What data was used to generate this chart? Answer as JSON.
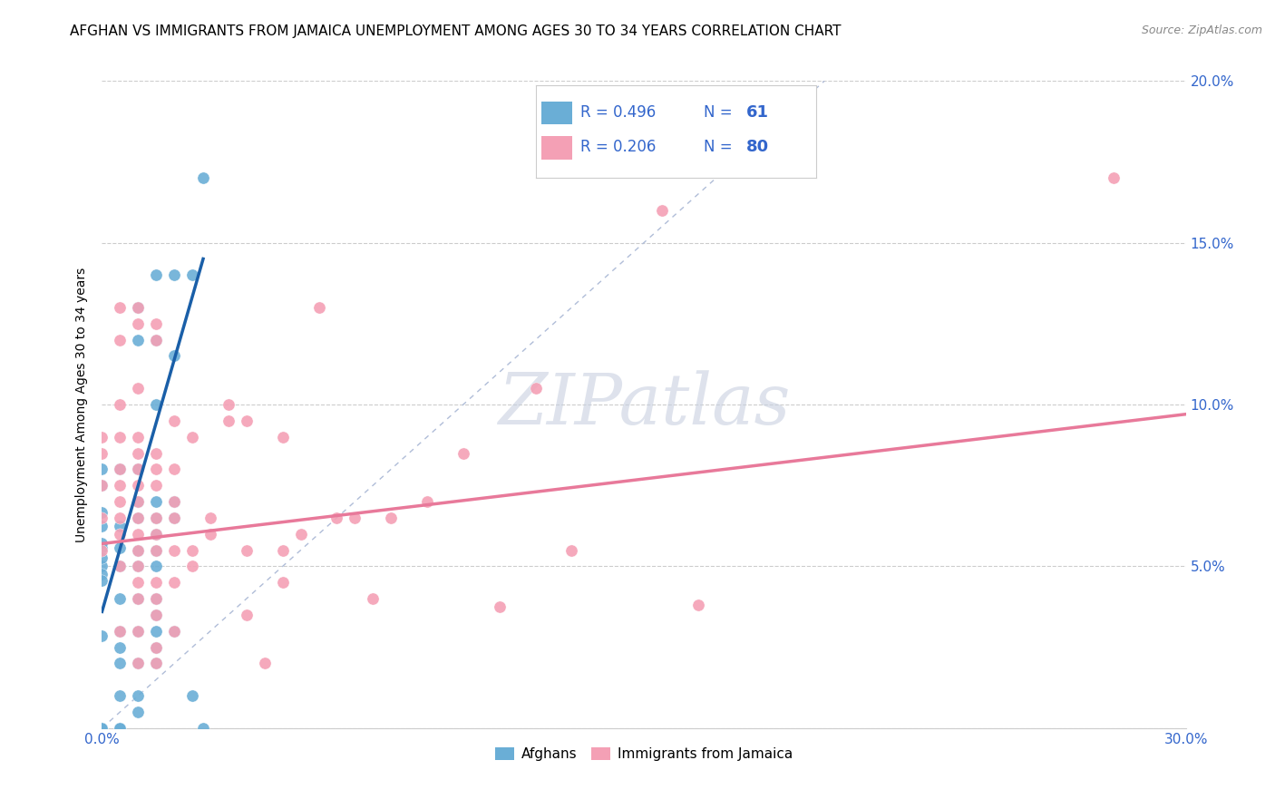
{
  "title": "AFGHAN VS IMMIGRANTS FROM JAMAICA UNEMPLOYMENT AMONG AGES 30 TO 34 YEARS CORRELATION CHART",
  "source": "Source: ZipAtlas.com",
  "ylabel": "Unemployment Among Ages 30 to 34 years",
  "xlim": [
    0.0,
    0.3
  ],
  "ylim": [
    0.0,
    0.2
  ],
  "xticks": [
    0.0,
    0.05,
    0.1,
    0.15,
    0.2,
    0.25,
    0.3
  ],
  "xtick_labels": [
    "0.0%",
    "",
    "",
    "",
    "",
    "",
    "30.0%"
  ],
  "yticks": [
    0.0,
    0.05,
    0.1,
    0.15,
    0.2
  ],
  "ytick_labels_right": [
    "",
    "5.0%",
    "10.0%",
    "15.0%",
    "20.0%"
  ],
  "legend_labels": [
    "Afghans",
    "Immigrants from Jamaica"
  ],
  "afghan_color": "#6aaed6",
  "jamaica_color": "#f4a0b5",
  "afghan_line_color": "#1a5fa8",
  "jamaica_line_color": "#e8799a",
  "diagonal_line_color": "#b0bdd8",
  "watermark_color": "#c8d0e0",
  "tick_color": "#3366cc",
  "title_fontsize": 11,
  "axis_label_fontsize": 10,
  "tick_fontsize": 11,
  "legend_fontsize": 12,
  "source_fontsize": 9,
  "afghan_points": [
    [
      0.0,
      0.0667
    ],
    [
      0.0,
      0.0556
    ],
    [
      0.0,
      0.0
    ],
    [
      0.0,
      0.0286
    ],
    [
      0.0,
      0.05
    ],
    [
      0.0,
      0.075
    ],
    [
      0.0,
      0.0
    ],
    [
      0.0,
      0.08
    ],
    [
      0.0,
      0.0571
    ],
    [
      0.0,
      0.0476
    ],
    [
      0.0,
      0.0625
    ],
    [
      0.0,
      0.0526
    ],
    [
      0.0,
      0.0455
    ],
    [
      0.0,
      0.0
    ],
    [
      0.0,
      0.0
    ],
    [
      0.005,
      0.08
    ],
    [
      0.005,
      0.0625
    ],
    [
      0.005,
      0.0556
    ],
    [
      0.005,
      0.05
    ],
    [
      0.005,
      0.04
    ],
    [
      0.005,
      0.03
    ],
    [
      0.005,
      0.025
    ],
    [
      0.005,
      0.02
    ],
    [
      0.005,
      0.01
    ],
    [
      0.005,
      0.0
    ],
    [
      0.005,
      0.0
    ],
    [
      0.005,
      0.0
    ],
    [
      0.01,
      0.13
    ],
    [
      0.01,
      0.12
    ],
    [
      0.01,
      0.08
    ],
    [
      0.01,
      0.07
    ],
    [
      0.01,
      0.065
    ],
    [
      0.01,
      0.055
    ],
    [
      0.01,
      0.05
    ],
    [
      0.01,
      0.04
    ],
    [
      0.01,
      0.03
    ],
    [
      0.01,
      0.02
    ],
    [
      0.01,
      0.01
    ],
    [
      0.01,
      0.005
    ],
    [
      0.015,
      0.14
    ],
    [
      0.015,
      0.12
    ],
    [
      0.015,
      0.1
    ],
    [
      0.015,
      0.07
    ],
    [
      0.015,
      0.065
    ],
    [
      0.015,
      0.06
    ],
    [
      0.015,
      0.055
    ],
    [
      0.015,
      0.05
    ],
    [
      0.015,
      0.04
    ],
    [
      0.015,
      0.035
    ],
    [
      0.015,
      0.03
    ],
    [
      0.015,
      0.025
    ],
    [
      0.015,
      0.02
    ],
    [
      0.02,
      0.14
    ],
    [
      0.02,
      0.115
    ],
    [
      0.02,
      0.07
    ],
    [
      0.02,
      0.065
    ],
    [
      0.02,
      0.03
    ],
    [
      0.025,
      0.14
    ],
    [
      0.025,
      0.01
    ],
    [
      0.028,
      0.17
    ],
    [
      0.028,
      0.0
    ]
  ],
  "jamaica_points": [
    [
      0.0,
      0.09
    ],
    [
      0.0,
      0.085
    ],
    [
      0.0,
      0.075
    ],
    [
      0.0,
      0.065
    ],
    [
      0.0,
      0.055
    ],
    [
      0.005,
      0.13
    ],
    [
      0.005,
      0.12
    ],
    [
      0.005,
      0.1
    ],
    [
      0.005,
      0.09
    ],
    [
      0.005,
      0.08
    ],
    [
      0.005,
      0.075
    ],
    [
      0.005,
      0.07
    ],
    [
      0.005,
      0.065
    ],
    [
      0.005,
      0.06
    ],
    [
      0.005,
      0.05
    ],
    [
      0.005,
      0.03
    ],
    [
      0.01,
      0.13
    ],
    [
      0.01,
      0.125
    ],
    [
      0.01,
      0.105
    ],
    [
      0.01,
      0.09
    ],
    [
      0.01,
      0.085
    ],
    [
      0.01,
      0.08
    ],
    [
      0.01,
      0.075
    ],
    [
      0.01,
      0.07
    ],
    [
      0.01,
      0.065
    ],
    [
      0.01,
      0.06
    ],
    [
      0.01,
      0.055
    ],
    [
      0.01,
      0.05
    ],
    [
      0.01,
      0.045
    ],
    [
      0.01,
      0.04
    ],
    [
      0.01,
      0.03
    ],
    [
      0.01,
      0.02
    ],
    [
      0.015,
      0.125
    ],
    [
      0.015,
      0.12
    ],
    [
      0.015,
      0.085
    ],
    [
      0.015,
      0.08
    ],
    [
      0.015,
      0.075
    ],
    [
      0.015,
      0.065
    ],
    [
      0.015,
      0.06
    ],
    [
      0.015,
      0.055
    ],
    [
      0.015,
      0.045
    ],
    [
      0.015,
      0.04
    ],
    [
      0.015,
      0.035
    ],
    [
      0.015,
      0.025
    ],
    [
      0.015,
      0.02
    ],
    [
      0.02,
      0.095
    ],
    [
      0.02,
      0.08
    ],
    [
      0.02,
      0.07
    ],
    [
      0.02,
      0.065
    ],
    [
      0.02,
      0.055
    ],
    [
      0.02,
      0.045
    ],
    [
      0.02,
      0.03
    ],
    [
      0.025,
      0.09
    ],
    [
      0.025,
      0.055
    ],
    [
      0.025,
      0.05
    ],
    [
      0.03,
      0.065
    ],
    [
      0.03,
      0.06
    ],
    [
      0.035,
      0.1
    ],
    [
      0.035,
      0.095
    ],
    [
      0.04,
      0.095
    ],
    [
      0.04,
      0.055
    ],
    [
      0.04,
      0.035
    ],
    [
      0.045,
      0.02
    ],
    [
      0.05,
      0.09
    ],
    [
      0.05,
      0.055
    ],
    [
      0.05,
      0.045
    ],
    [
      0.055,
      0.06
    ],
    [
      0.06,
      0.13
    ],
    [
      0.065,
      0.065
    ],
    [
      0.07,
      0.065
    ],
    [
      0.075,
      0.04
    ],
    [
      0.08,
      0.065
    ],
    [
      0.09,
      0.07
    ],
    [
      0.1,
      0.085
    ],
    [
      0.11,
      0.0375
    ],
    [
      0.12,
      0.105
    ],
    [
      0.13,
      0.055
    ],
    [
      0.155,
      0.16
    ],
    [
      0.165,
      0.038
    ],
    [
      0.28,
      0.17
    ]
  ],
  "afghan_line_x": [
    0.0,
    0.028
  ],
  "afghan_line_y": [
    0.036,
    0.145
  ],
  "jamaica_line_x": [
    0.0,
    0.3
  ],
  "jamaica_line_y": [
    0.057,
    0.097
  ]
}
